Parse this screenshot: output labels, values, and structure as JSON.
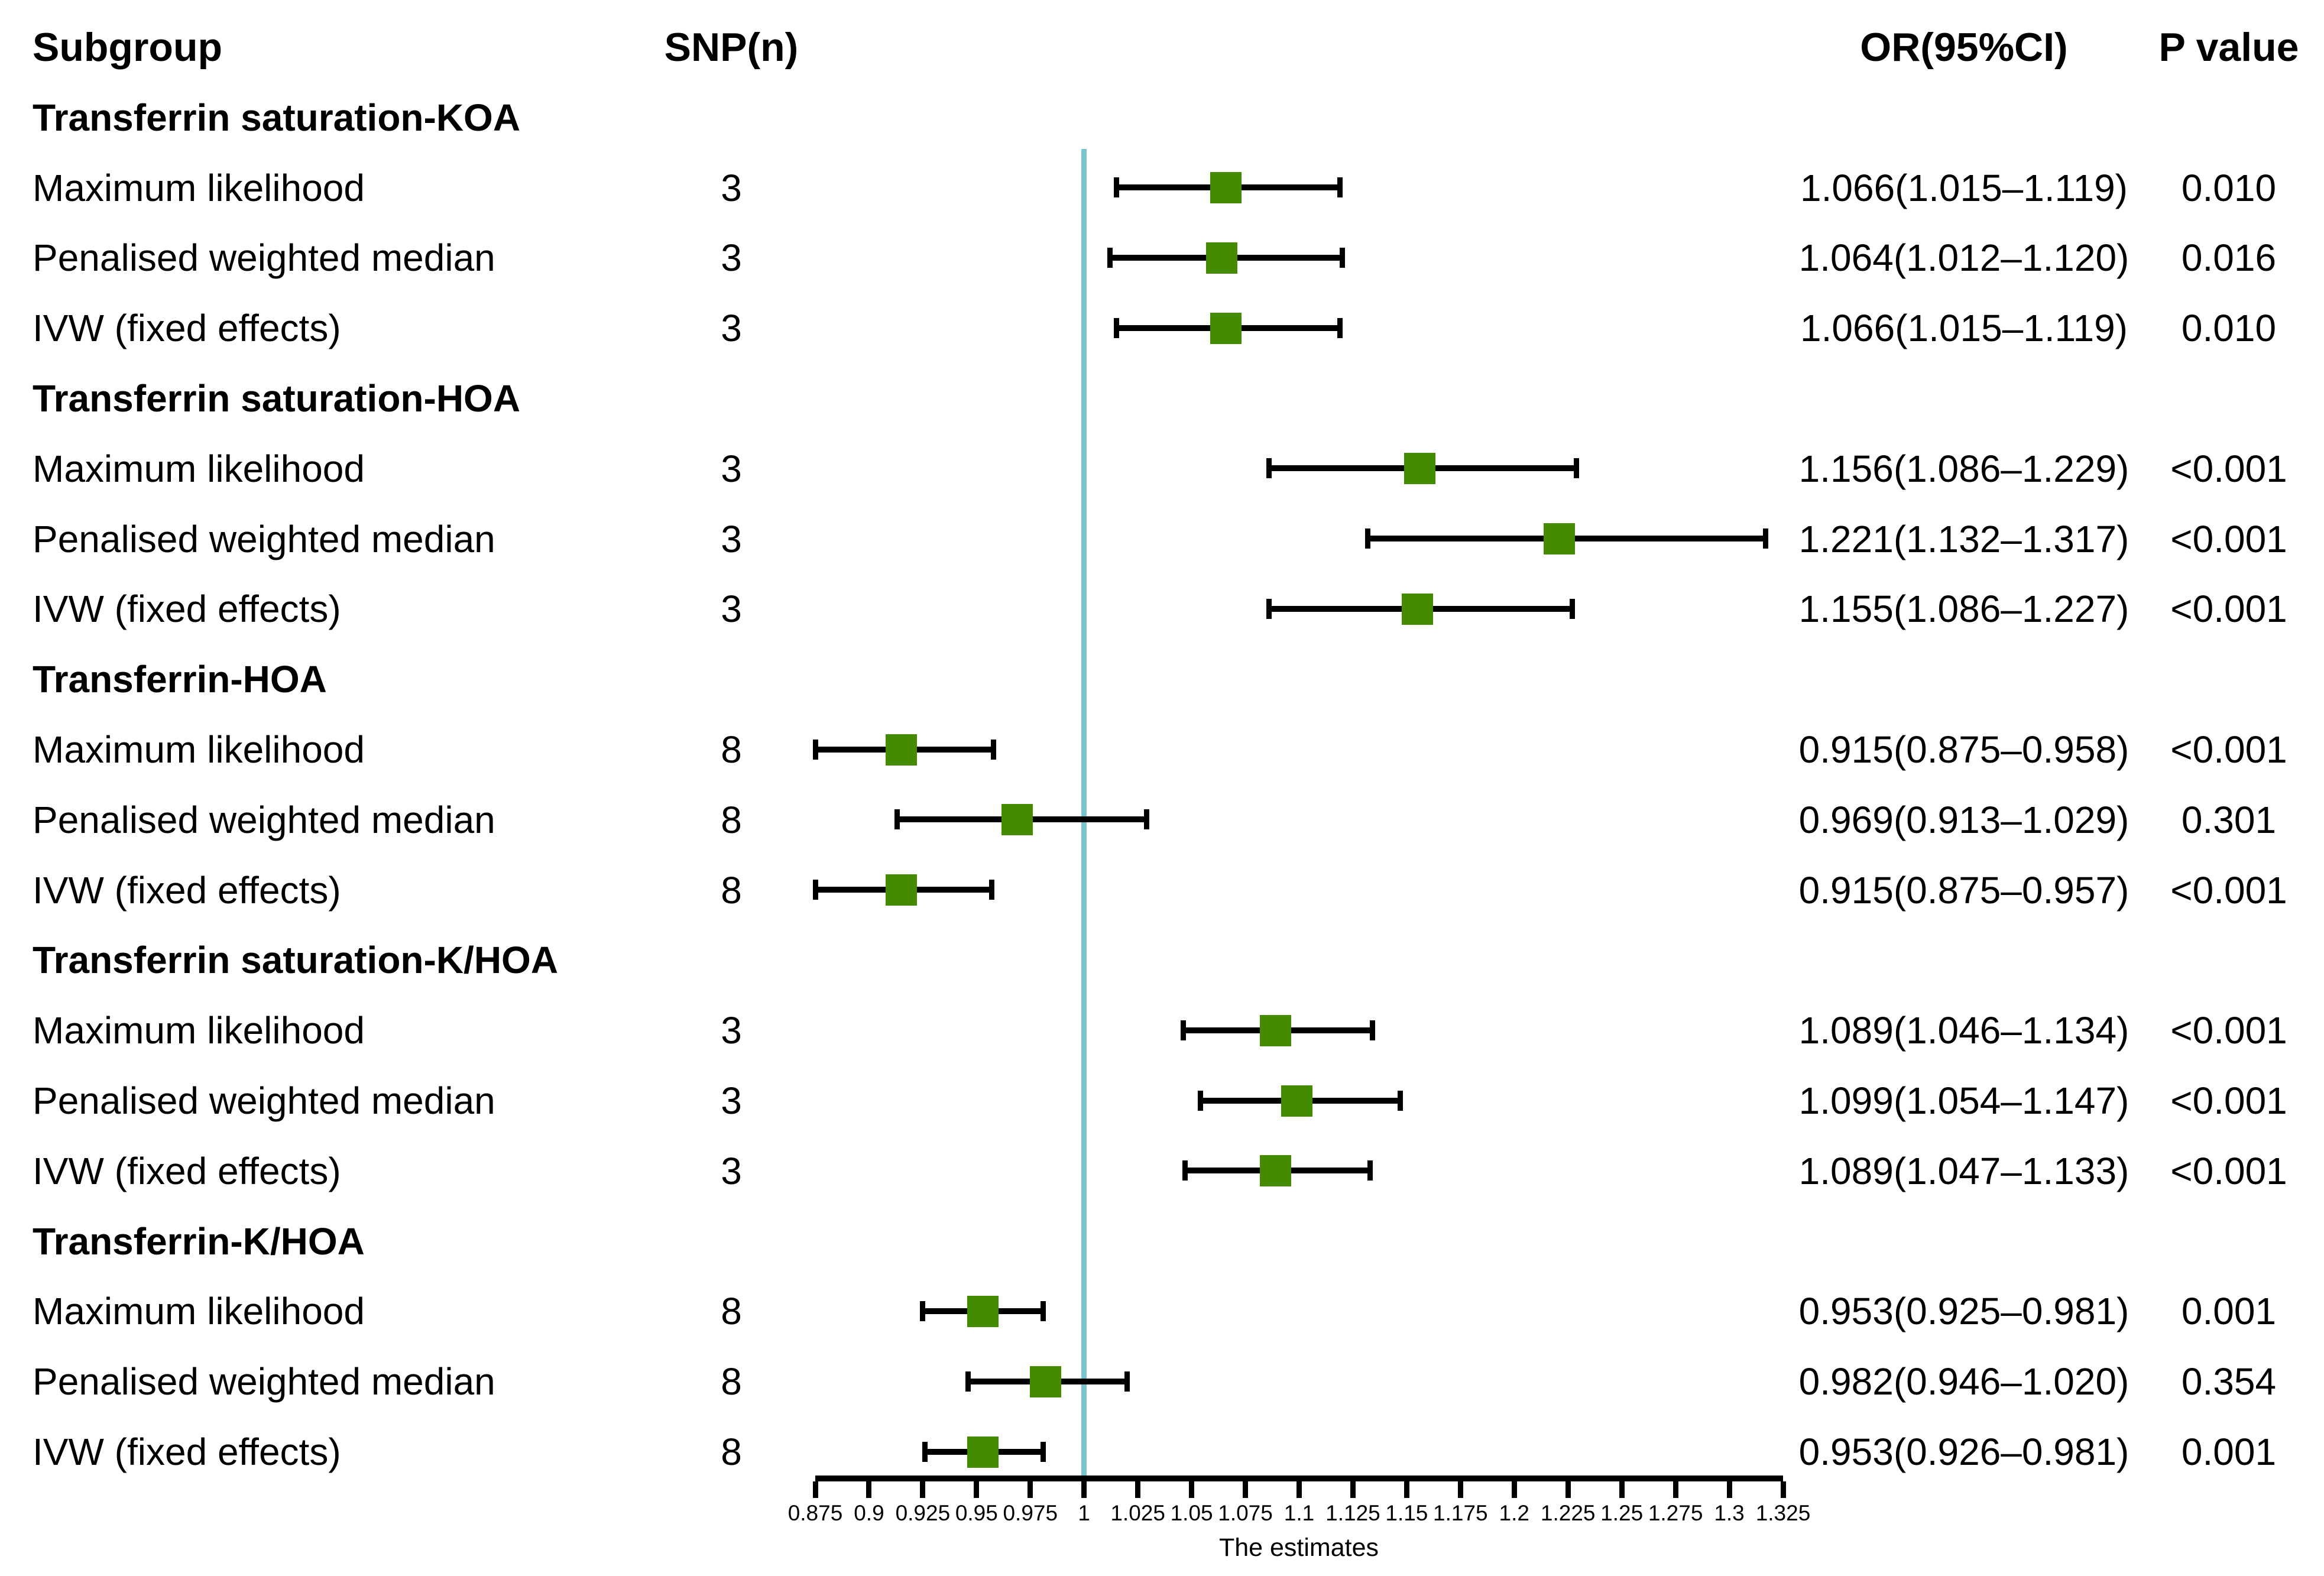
{
  "columns": {
    "subgroup": "Subgroup",
    "snp": "SNP(n)",
    "or": "OR(95%CI)",
    "p": "P value"
  },
  "colors": {
    "marker_green": "#458B00",
    "refline_teal": "#7AC5CD",
    "line_black": "#000000"
  },
  "chart_data": {
    "type": "scatter",
    "subtype": "forest-plot",
    "xlabel": "The estimates",
    "xlim": [
      0.875,
      1.325
    ],
    "reference_line": 1,
    "xticks": [
      "0.875",
      "0.9",
      "0.925",
      "0.95",
      "0.975",
      "1",
      "1.025",
      "1.05",
      "1.075",
      "1.1",
      "1.125",
      "1.15",
      "1.175",
      "1.2",
      "1.225",
      "1.25",
      "1.275",
      "1.3",
      "1.325"
    ],
    "grid": false,
    "marker_shape": "square",
    "groups": [
      {
        "name": "Transferrin saturation-KOA",
        "rows": [
          {
            "label": "Maximum likelihood",
            "snp": "3",
            "or": 1.066,
            "lo": 1.015,
            "hi": 1.119,
            "or_text": "1.066(1.015–1.119)",
            "p": "0.010"
          },
          {
            "label": "Penalised weighted median",
            "snp": "3",
            "or": 1.064,
            "lo": 1.012,
            "hi": 1.12,
            "or_text": "1.064(1.012–1.120)",
            "p": "0.016"
          },
          {
            "label": "IVW (fixed effects)",
            "snp": "3",
            "or": 1.066,
            "lo": 1.015,
            "hi": 1.119,
            "or_text": "1.066(1.015–1.119)",
            "p": "0.010"
          }
        ]
      },
      {
        "name": "Transferrin saturation-HOA",
        "rows": [
          {
            "label": "Maximum likelihood",
            "snp": "3",
            "or": 1.156,
            "lo": 1.086,
            "hi": 1.229,
            "or_text": "1.156(1.086–1.229)",
            "p": "<0.001"
          },
          {
            "label": "Penalised weighted median",
            "snp": "3",
            "or": 1.221,
            "lo": 1.132,
            "hi": 1.317,
            "or_text": "1.221(1.132–1.317)",
            "p": "<0.001"
          },
          {
            "label": "IVW (fixed effects)",
            "snp": "3",
            "or": 1.155,
            "lo": 1.086,
            "hi": 1.227,
            "or_text": "1.155(1.086–1.227)",
            "p": "<0.001"
          }
        ]
      },
      {
        "name": "Transferrin-HOA",
        "rows": [
          {
            "label": "Maximum likelihood",
            "snp": "8",
            "or": 0.915,
            "lo": 0.875,
            "hi": 0.958,
            "or_text": "0.915(0.875–0.958)",
            "p": "<0.001"
          },
          {
            "label": "Penalised weighted median",
            "snp": "8",
            "or": 0.969,
            "lo": 0.913,
            "hi": 1.029,
            "or_text": "0.969(0.913–1.029)",
            "p": "0.301"
          },
          {
            "label": "IVW (fixed effects)",
            "snp": "8",
            "or": 0.915,
            "lo": 0.875,
            "hi": 0.957,
            "or_text": "0.915(0.875–0.957)",
            "p": "<0.001"
          }
        ]
      },
      {
        "name": "Transferrin saturation-K/HOA",
        "rows": [
          {
            "label": "Maximum likelihood",
            "snp": "3",
            "or": 1.089,
            "lo": 1.046,
            "hi": 1.134,
            "or_text": "1.089(1.046–1.134)",
            "p": "<0.001"
          },
          {
            "label": "Penalised weighted median",
            "snp": "3",
            "or": 1.099,
            "lo": 1.054,
            "hi": 1.147,
            "or_text": "1.099(1.054–1.147)",
            "p": "<0.001"
          },
          {
            "label": "IVW (fixed effects)",
            "snp": "3",
            "or": 1.089,
            "lo": 1.047,
            "hi": 1.133,
            "or_text": "1.089(1.047–1.133)",
            "p": "<0.001"
          }
        ]
      },
      {
        "name": "Transferrin-K/HOA",
        "rows": [
          {
            "label": "Maximum likelihood",
            "snp": "8",
            "or": 0.953,
            "lo": 0.925,
            "hi": 0.981,
            "or_text": "0.953(0.925–0.981)",
            "p": "0.001"
          },
          {
            "label": "Penalised weighted median",
            "snp": "8",
            "or": 0.982,
            "lo": 0.946,
            "hi": 1.02,
            "or_text": "0.982(0.946–1.020)",
            "p": "0.354"
          },
          {
            "label": "IVW (fixed effects)",
            "snp": "8",
            "or": 0.953,
            "lo": 0.926,
            "hi": 0.981,
            "or_text": "0.953(0.926–0.981)",
            "p": "0.001"
          }
        ]
      }
    ]
  }
}
